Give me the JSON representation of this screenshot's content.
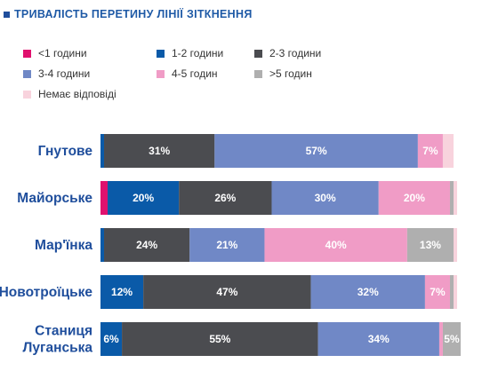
{
  "chart_data": {
    "type": "bar",
    "orientation": "horizontal",
    "stacked": true,
    "title": "ТРИВАЛІСТЬ ПЕРЕТИНУ ЛІНІЇ ЗІТКНЕННЯ",
    "xlim": [
      0,
      100
    ],
    "grid": false,
    "legend_position": "top",
    "categories": [
      "Гнутове",
      "Майорське",
      "Мар'їнка",
      "Новотроїцьке",
      "Станиця Луганська"
    ],
    "series": [
      {
        "name": "<1 години",
        "color": "#e0116e",
        "values": [
          0,
          2,
          0,
          0,
          0
        ],
        "labels": [
          "",
          "",
          "",
          "",
          ""
        ]
      },
      {
        "name": "1-2 години",
        "color": "#0a5aa8",
        "values": [
          1,
          20,
          1,
          12,
          6
        ],
        "labels": [
          "",
          "20%",
          "",
          "12%",
          "6%"
        ]
      },
      {
        "name": "2-3 години",
        "color": "#4b4c50",
        "values": [
          31,
          26,
          24,
          47,
          55
        ],
        "labels": [
          "31%",
          "26%",
          "24%",
          "47%",
          "55%"
        ]
      },
      {
        "name": "3-4 години",
        "color": "#7088c6",
        "values": [
          57,
          30,
          21,
          32,
          34
        ],
        "labels": [
          "57%",
          "30%",
          "21%",
          "32%",
          "34%"
        ]
      },
      {
        "name": "4-5 годин",
        "color": "#f09cc6",
        "values": [
          7,
          20,
          40,
          7,
          1
        ],
        "labels": [
          "7%",
          "20%",
          "40%",
          "7%",
          ""
        ]
      },
      {
        "name": ">5 годин",
        "color": "#afafaf",
        "values": [
          0,
          1,
          13,
          1,
          5
        ],
        "labels": [
          "",
          "",
          "13%",
          "",
          "5%"
        ]
      },
      {
        "name": "Немає відповіді",
        "color": "#f8d3dd",
        "values": [
          3,
          1,
          1,
          1,
          0
        ],
        "labels": [
          "",
          "",
          "",
          "",
          ""
        ]
      }
    ]
  }
}
